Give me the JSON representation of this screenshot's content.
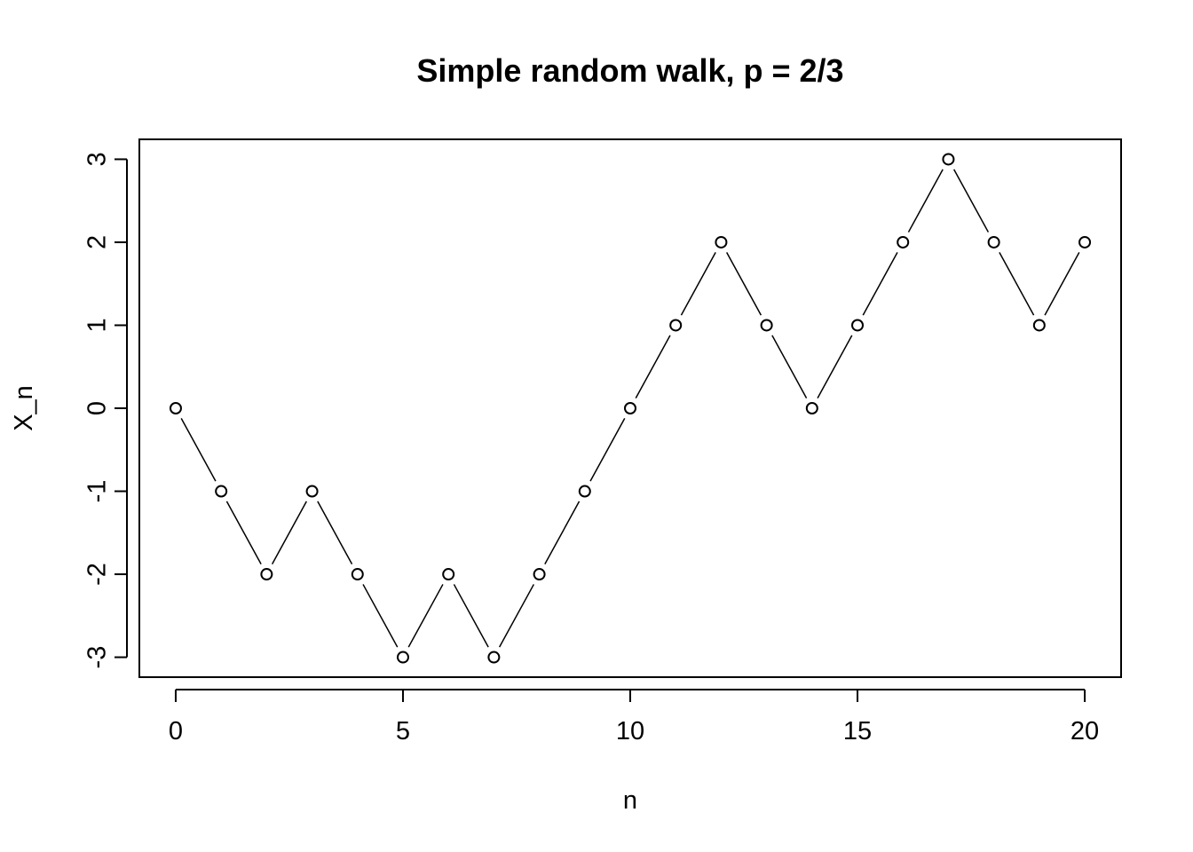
{
  "chart_data": {
    "type": "line",
    "title": "Simple random walk, p = 2/3",
    "xlabel": "n",
    "ylabel": "X_n",
    "xlim": [
      -0.8,
      20.8
    ],
    "ylim": [
      -3.24,
      3.24
    ],
    "xticks": [
      "0",
      "5",
      "10",
      "15",
      "20"
    ],
    "yticks": [
      "-3",
      "-2",
      "-1",
      "0",
      "1",
      "2",
      "3"
    ],
    "grid": false,
    "marker": "open-circle",
    "line_type": "b",
    "series": [
      {
        "x": [
          0,
          1,
          2,
          3,
          4,
          5,
          6,
          7,
          8,
          9,
          10,
          11,
          12,
          13,
          14,
          15,
          16,
          17,
          18,
          19,
          20
        ],
        "values": [
          0,
          -1,
          -2,
          -1,
          -2,
          -3,
          -2,
          -3,
          -2,
          -1,
          0,
          1,
          2,
          1,
          0,
          1,
          2,
          3,
          2,
          1,
          2
        ]
      }
    ]
  }
}
